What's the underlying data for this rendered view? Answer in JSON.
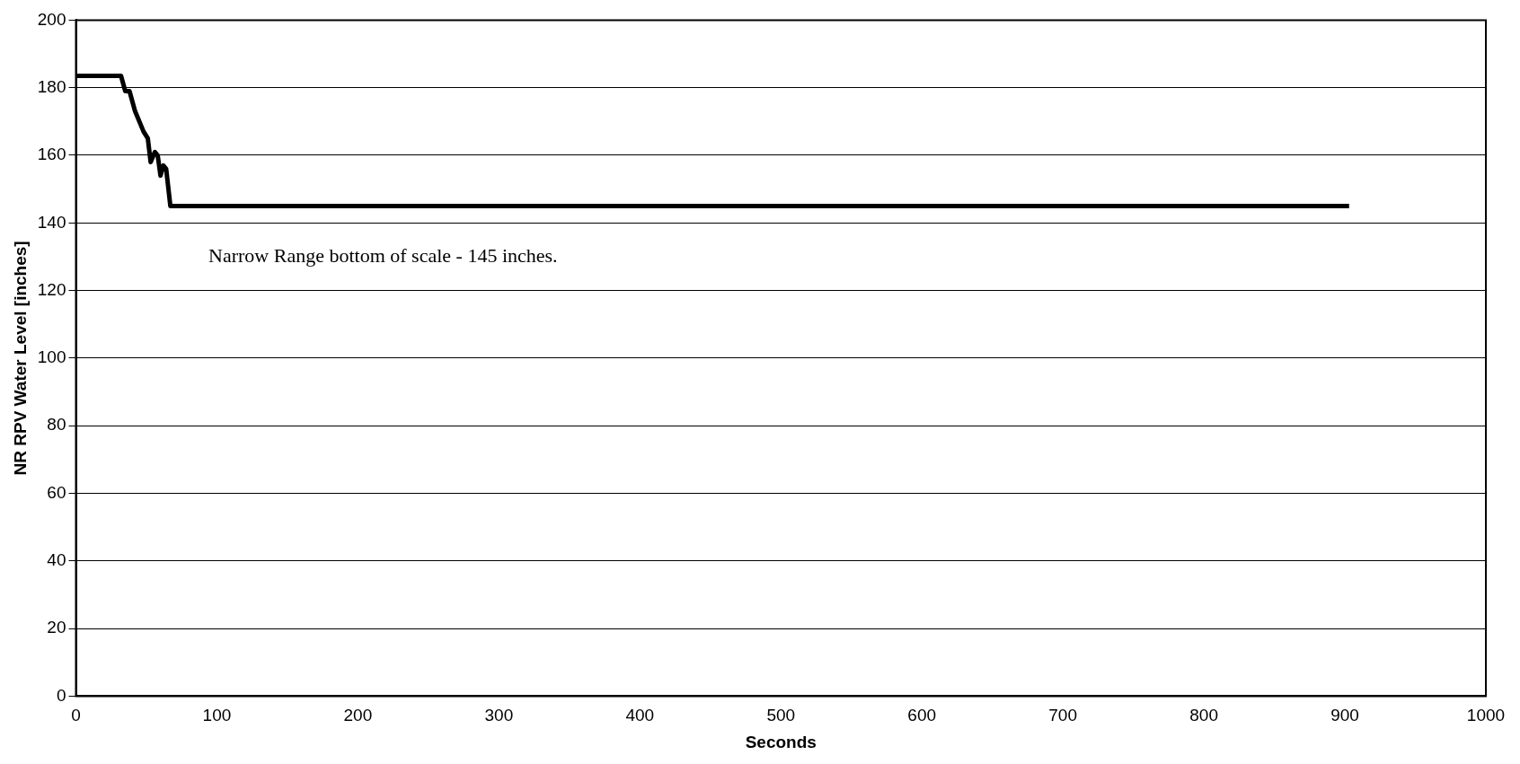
{
  "chart_data": {
    "type": "line",
    "xlabel": "Seconds",
    "ylabel": "NR RPV Water Level [inches]",
    "annotations": [
      "Narrow Range bottom of scale - 145 inches."
    ],
    "series": [
      {
        "color": "#000000",
        "x": [
          0,
          32,
          35,
          38,
          42,
          48,
          51,
          53,
          56,
          58,
          60,
          62,
          64,
          67,
          200,
          400,
          600,
          800,
          903
        ],
        "values": [
          183.5,
          183.5,
          179,
          179,
          173,
          167,
          165,
          158,
          161,
          160,
          154,
          157,
          156,
          145,
          145,
          145,
          145,
          145,
          145
        ]
      }
    ],
    "xlim": [
      0,
      1000
    ],
    "xticks": [
      0,
      100,
      200,
      300,
      400,
      500,
      600,
      700,
      800,
      900,
      1000
    ],
    "ylim": [
      0,
      200
    ],
    "yticks": [
      0,
      20,
      40,
      60,
      80,
      100,
      120,
      140,
      160,
      180,
      200
    ],
    "grid": "y",
    "legend": false,
    "marker": "none",
    "line_style": "solid"
  }
}
